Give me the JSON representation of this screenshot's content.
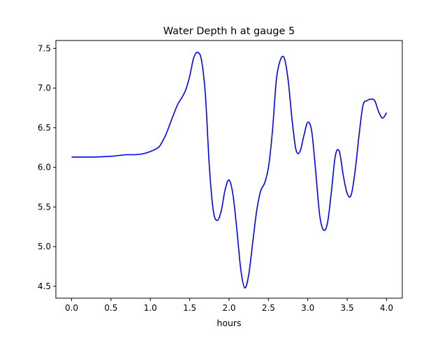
{
  "chart_data": {
    "type": "line",
    "title": "Water Depth h at gauge 5",
    "xlabel": "hours",
    "ylabel": "",
    "xlim": [
      -0.2,
      4.2
    ],
    "ylim": [
      4.35,
      7.6
    ],
    "xticks": [
      0.0,
      0.5,
      1.0,
      1.5,
      2.0,
      2.5,
      3.0,
      3.5,
      4.0
    ],
    "xtick_labels": [
      "0.0",
      "0.5",
      "1.0",
      "1.5",
      "2.0",
      "2.5",
      "3.0",
      "3.5",
      "4.0"
    ],
    "yticks": [
      4.5,
      5.0,
      5.5,
      6.0,
      6.5,
      7.0,
      7.5
    ],
    "ytick_labels": [
      "4.5",
      "5.0",
      "5.5",
      "6.0",
      "6.5",
      "7.0",
      "7.5"
    ],
    "grid": false,
    "legend": "none",
    "series": [
      {
        "color": "#0000ff",
        "x": [
          0.0,
          0.25,
          0.5,
          0.6,
          0.7,
          0.8,
          0.9,
          1.0,
          1.1,
          1.15,
          1.2,
          1.25,
          1.3,
          1.35,
          1.4,
          1.45,
          1.5,
          1.55,
          1.6,
          1.65,
          1.7,
          1.75,
          1.8,
          1.85,
          1.9,
          1.95,
          2.0,
          2.05,
          2.1,
          2.15,
          2.2,
          2.25,
          2.3,
          2.35,
          2.4,
          2.45,
          2.5,
          2.55,
          2.6,
          2.65,
          2.7,
          2.75,
          2.8,
          2.85,
          2.9,
          2.95,
          3.0,
          3.05,
          3.1,
          3.15,
          3.2,
          3.25,
          3.3,
          3.35,
          3.4,
          3.45,
          3.5,
          3.55,
          3.6,
          3.65,
          3.7,
          3.75,
          3.8,
          3.85,
          3.9,
          3.95,
          4.0
        ],
        "y": [
          6.13,
          6.13,
          6.14,
          6.15,
          6.16,
          6.16,
          6.17,
          6.2,
          6.25,
          6.32,
          6.42,
          6.55,
          6.68,
          6.8,
          6.88,
          6.98,
          7.15,
          7.38,
          7.45,
          7.35,
          6.9,
          6.0,
          5.45,
          5.33,
          5.45,
          5.72,
          5.84,
          5.65,
          5.2,
          4.7,
          4.48,
          4.65,
          5.05,
          5.45,
          5.7,
          5.8,
          6.0,
          6.45,
          7.1,
          7.35,
          7.38,
          7.1,
          6.6,
          6.22,
          6.2,
          6.4,
          6.57,
          6.45,
          5.95,
          5.4,
          5.21,
          5.3,
          5.7,
          6.15,
          6.2,
          5.9,
          5.67,
          5.65,
          5.95,
          6.4,
          6.78,
          6.84,
          6.86,
          6.84,
          6.7,
          6.62,
          6.69
        ]
      }
    ]
  }
}
